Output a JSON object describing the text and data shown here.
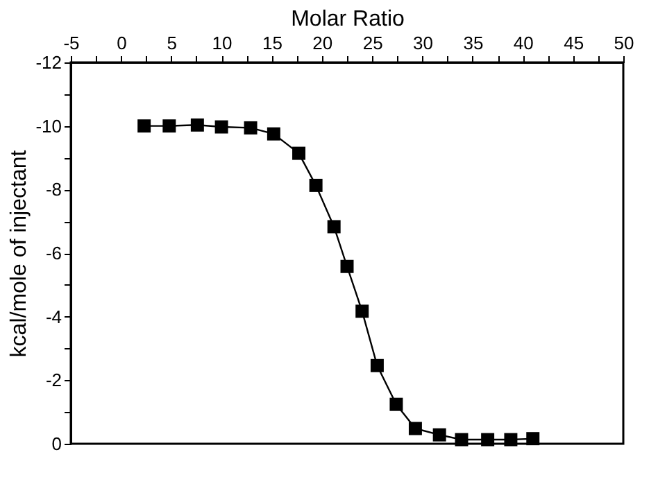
{
  "chart_data": {
    "type": "line",
    "xlabel": "Molar Ratio",
    "ylabel": "kcal/mole of injectant",
    "x": [
      2.3,
      4.8,
      7.6,
      10.0,
      12.9,
      15.2,
      17.7,
      19.4,
      21.2,
      22.5,
      24.0,
      25.5,
      27.4,
      29.3,
      31.7,
      33.9,
      36.5,
      38.8,
      41.0
    ],
    "series": [
      {
        "color": "#000000",
        "values": [
          -10.0,
          -10.0,
          -10.03,
          -9.97,
          -9.94,
          -9.75,
          -9.14,
          -8.13,
          -6.83,
          -5.58,
          -4.17,
          -2.46,
          -1.24,
          -0.48,
          -0.28,
          -0.13,
          -0.13,
          -0.13,
          -0.16
        ]
      }
    ],
    "marker": "square",
    "line_style": "solid",
    "grid": false,
    "xlim": [
      -5,
      50
    ],
    "ylim": [
      0,
      -12
    ],
    "xticks": [
      -5,
      {
        "value": -2.5,
        "label": null
      },
      0,
      {
        "value": 2.5,
        "label": null
      },
      5,
      {
        "value": 7.5,
        "label": null
      },
      10,
      {
        "value": 12.5,
        "label": null
      },
      15,
      {
        "value": 17.5,
        "label": null
      },
      20,
      {
        "value": 22.5,
        "label": null
      },
      25,
      {
        "value": 27.5,
        "label": null
      },
      30,
      {
        "value": 32.5,
        "label": null
      },
      35,
      {
        "value": 37.5,
        "label": null
      },
      40,
      {
        "value": 42.5,
        "label": null
      },
      45,
      {
        "value": 47.5,
        "label": null
      },
      50
    ],
    "yticks": [
      0,
      {
        "value": -1,
        "label": null
      },
      -2,
      {
        "value": -3,
        "label": null
      },
      -4,
      {
        "value": -5,
        "label": null
      },
      -6,
      {
        "value": -7,
        "label": null
      },
      -8,
      {
        "value": -9,
        "label": null
      },
      -10,
      {
        "value": -11,
        "label": null
      },
      -12
    ]
  }
}
